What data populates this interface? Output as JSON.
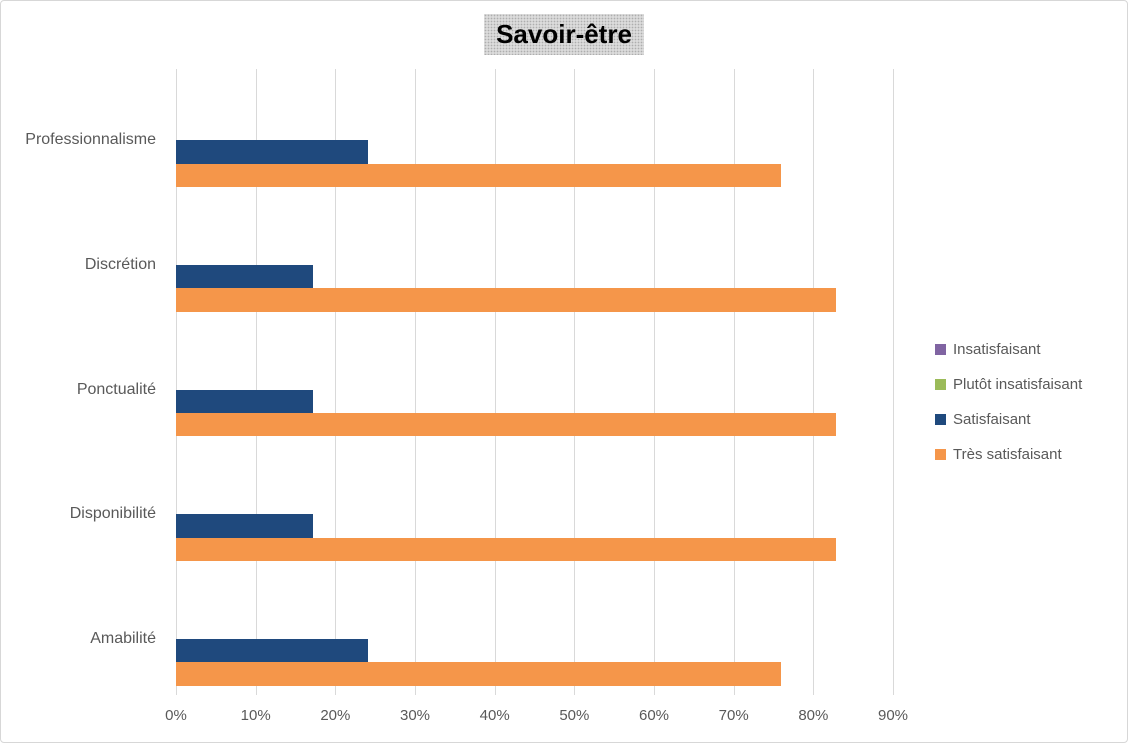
{
  "frame": {
    "background": "#ffffff",
    "border_color": "#d7d7d7",
    "title_fill_color": "#dbdbdb",
    "grid_color": "#d9d9d9",
    "axis_text_color": "#595959"
  },
  "chart_data": {
    "type": "bar",
    "orientation": "horizontal",
    "title": "Savoir-être",
    "categories": [
      "Professionnalisme",
      "Discrétion",
      "Ponctualité",
      "Disponibilité",
      "Amabilité"
    ],
    "series": [
      {
        "name": "Insatisfaisant",
        "color": "#8064A2",
        "values": [
          0,
          0,
          0,
          0,
          0
        ]
      },
      {
        "name": "Plutôt insatisfaisant",
        "color": "#9BBB59",
        "values": [
          0,
          0,
          0,
          0,
          0
        ]
      },
      {
        "name": "Satisfaisant",
        "color": "#1F497D",
        "values": [
          24.1,
          17.2,
          17.2,
          17.2,
          24.1
        ]
      },
      {
        "name": "Très satisfaisant",
        "color": "#F5964A",
        "values": [
          75.9,
          82.8,
          82.8,
          82.8,
          75.9
        ]
      }
    ],
    "x_axis": {
      "min": 0,
      "max": 90,
      "tick_step": 10,
      "unit": "%",
      "tick_labels": [
        "0%",
        "10%",
        "20%",
        "30%",
        "40%",
        "50%",
        "60%",
        "70%",
        "80%",
        "90%"
      ]
    },
    "legend": {
      "position": "right",
      "entries": [
        "Insatisfaisant",
        "Plutôt insatisfaisant",
        "Satisfaisant",
        "Très satisfaisant"
      ]
    },
    "grid": true
  }
}
